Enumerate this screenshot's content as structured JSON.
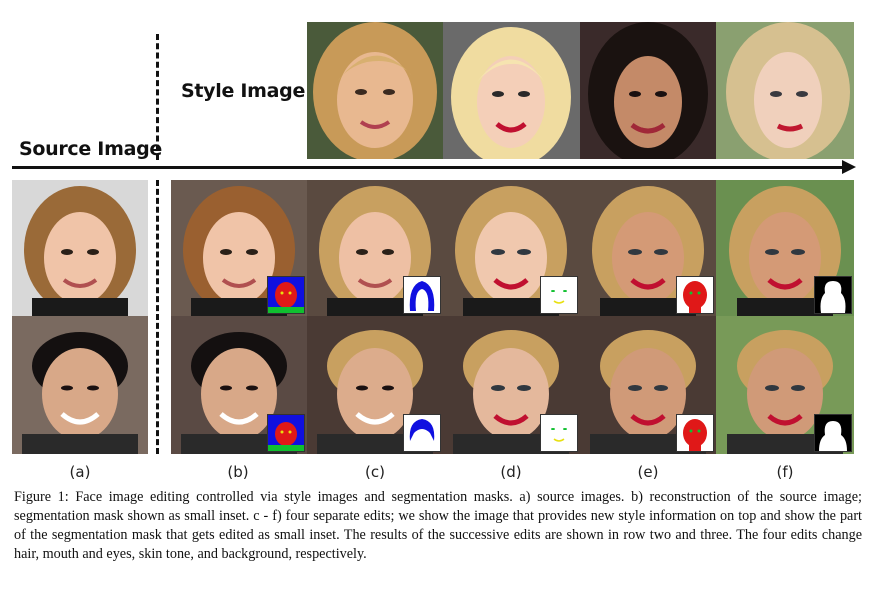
{
  "labels": {
    "style_image": "Style Image",
    "source_image": "Source Image"
  },
  "columns": [
    "(a)",
    "(b)",
    "(c)",
    "(d)",
    "(e)",
    "(f)"
  ],
  "caption": "Figure 1: Face image editing controlled via style images and segmentation masks. a) source images. b) reconstruction of the source image; segmentation mask shown as small inset. c - f) four separate edits; we show the image that provides new style information on top and show the part of the segmentation mask that gets edited as small inset. The results of the successive edits are shown in row two and three. The four edits change hair, mouth and eyes, skin tone, and background, respectively.",
  "colors": {
    "mask_blue": "#1010e0",
    "mask_red": "#e01818",
    "mask_green": "#10c030",
    "mask_yellow": "#e8e010"
  }
}
